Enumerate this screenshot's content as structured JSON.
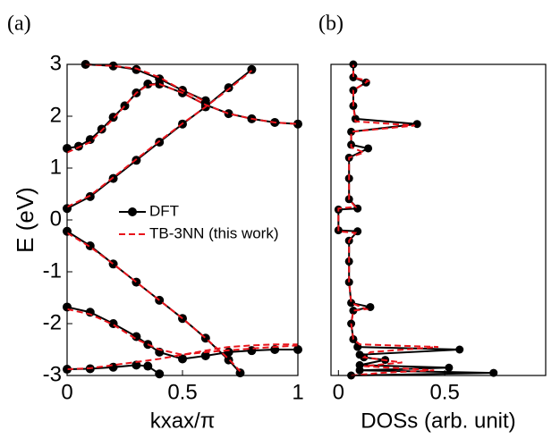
{
  "chart_data": [
    {
      "type": "bands",
      "label": "(a)",
      "xlabel": "kxax/π",
      "ylabel": "E (eV)",
      "xlim": [
        0,
        1
      ],
      "ylim": [
        -3,
        3
      ],
      "xticks": [
        0,
        0.5,
        1
      ],
      "yticks": [
        -3,
        -2,
        -1,
        0,
        1,
        2,
        3
      ],
      "series": [
        {
          "name": "DFT",
          "color": "#000000",
          "marker": "o",
          "dash": false,
          "lines": [
            {
              "x": [
                0,
                0.1,
                0.2,
                0.3,
                0.4,
                0.5,
                0.6,
                0.7,
                0.8
              ],
              "values": [
                0.22,
                0.45,
                0.8,
                1.15,
                1.5,
                1.85,
                2.18,
                2.55,
                2.9
              ]
            },
            {
              "x": [
                0,
                0.05,
                0.1,
                0.15,
                0.2,
                0.25,
                0.3,
                0.35,
                0.4,
                0.5,
                0.6,
                0.7,
                0.8,
                0.9,
                1
              ],
              "values": [
                1.38,
                1.42,
                1.55,
                1.75,
                1.98,
                2.2,
                2.45,
                2.62,
                2.62,
                2.45,
                2.22,
                2.05,
                1.95,
                1.88,
                1.85
              ]
            },
            {
              "x": [
                0.08,
                0.2,
                0.3,
                0.4,
                0.5,
                0.6
              ],
              "values": [
                3,
                2.97,
                2.9,
                2.72,
                2.5,
                2.3
              ]
            },
            {
              "x": [
                0,
                0.1,
                0.2,
                0.3,
                0.4,
                0.5,
                0.6,
                0.7,
                0.75
              ],
              "values": [
                -0.22,
                -0.5,
                -0.85,
                -1.2,
                -1.55,
                -1.9,
                -2.28,
                -2.7,
                -2.95
              ]
            },
            {
              "x": [
                0,
                0.1,
                0.2,
                0.3,
                0.35,
                0.4,
                0.5,
                0.6,
                0.7,
                0.8,
                0.9,
                1
              ],
              "values": [
                -1.68,
                -1.78,
                -2,
                -2.25,
                -2.4,
                -2.55,
                -2.68,
                -2.62,
                -2.55,
                -2.52,
                -2.5,
                -2.5
              ]
            },
            {
              "x": [
                0,
                0.1,
                0.2,
                0.3,
                0.35,
                0.4
              ],
              "values": [
                -2.88,
                -2.87,
                -2.84,
                -2.8,
                -2.82,
                -2.97
              ]
            }
          ]
        },
        {
          "name": "TB-3NN (this work)",
          "color": "#e8141b",
          "marker": "none",
          "dash": true,
          "lines": [
            {
              "x": [
                0,
                0.1,
                0.2,
                0.3,
                0.4,
                0.5,
                0.6,
                0.7,
                0.8
              ],
              "values": [
                0.25,
                0.47,
                0.82,
                1.17,
                1.52,
                1.86,
                2.18,
                2.52,
                2.88
              ]
            },
            {
              "x": [
                0,
                0.1,
                0.2,
                0.3,
                0.35,
                0.4,
                0.5,
                0.6,
                0.7,
                0.8,
                0.9,
                1
              ],
              "values": [
                1.3,
                1.5,
                1.95,
                2.45,
                2.6,
                2.62,
                2.45,
                2.22,
                2.05,
                1.95,
                1.88,
                1.85
              ]
            },
            {
              "x": [
                0.08,
                0.2,
                0.3,
                0.4,
                0.5,
                0.6
              ],
              "values": [
                3,
                2.97,
                2.92,
                2.75,
                2.5,
                2.28
              ]
            },
            {
              "x": [
                0,
                0.1,
                0.2,
                0.3,
                0.4,
                0.5,
                0.6,
                0.7,
                0.75
              ],
              "values": [
                -0.25,
                -0.52,
                -0.85,
                -1.2,
                -1.55,
                -1.9,
                -2.28,
                -2.68,
                -2.92
              ]
            },
            {
              "x": [
                0,
                0.1,
                0.2,
                0.3,
                0.4,
                0.5,
                0.6,
                0.7,
                0.8,
                0.9,
                1
              ],
              "values": [
                -1.72,
                -1.82,
                -2.02,
                -2.3,
                -2.5,
                -2.6,
                -2.52,
                -2.45,
                -2.42,
                -2.4,
                -2.4
              ]
            },
            {
              "x": [
                0,
                0.1,
                0.2,
                0.3,
                0.4,
                0.5,
                0.6,
                0.8,
                1
              ],
              "values": [
                -2.88,
                -2.86,
                -2.8,
                -2.74,
                -2.68,
                -2.6,
                -2.55,
                -2.48,
                -2.42
              ]
            }
          ]
        }
      ]
    },
    {
      "type": "dos",
      "label": "(b)",
      "xlabel": "DOSs (arb. unit)",
      "xlim": [
        -0.035,
        0.975
      ],
      "ylim": [
        -3,
        3
      ],
      "xticks": [
        0,
        0.5
      ],
      "series": [
        {
          "color": "#000000",
          "marker": "o",
          "dash": false,
          "energy": [
            -3,
            -2.95,
            -2.9,
            -2.85,
            -2.8,
            -2.7,
            -2.65,
            -2.6,
            -2.5,
            -2.45,
            -2.3,
            -2,
            -1.75,
            -1.68,
            -1.6,
            -1.2,
            -0.8,
            -0.4,
            -0.22,
            -0.2,
            0.2,
            0.22,
            0.4,
            0.8,
            1.2,
            1.38,
            1.45,
            1.7,
            1.85,
            1.95,
            2.2,
            2.5,
            2.65,
            2.75,
            3
          ],
          "values": [
            0.06,
            0.73,
            0.1,
            0.52,
            0.1,
            0.22,
            0.12,
            0.1,
            0.57,
            0.09,
            0.07,
            0.06,
            0.07,
            0.15,
            0.06,
            0.05,
            0.05,
            0.05,
            0.09,
            0,
            0,
            0.09,
            0.05,
            0.05,
            0.05,
            0.14,
            0.06,
            0.06,
            0.37,
            0.08,
            0.07,
            0.07,
            0.13,
            0.07,
            0.07
          ]
        },
        {
          "color": "#e8141b",
          "marker": "none",
          "dash": true,
          "energy": [
            -3,
            -2.95,
            -2.9,
            -2.82,
            -2.75,
            -2.65,
            -2.55,
            -2.45,
            -2.4,
            -2.3,
            -2,
            -1.75,
            -1.72,
            -1.6,
            -1.2,
            -0.8,
            -0.4,
            -0.25,
            -0.22,
            0.22,
            0.25,
            0.4,
            0.8,
            1.2,
            1.3,
            1.4,
            1.7,
            1.82,
            1.9,
            2.2,
            2.5,
            2.68,
            2.75,
            3
          ],
          "values": [
            0.06,
            0.2,
            0.45,
            0.12,
            0.3,
            0.12,
            0.15,
            0.47,
            0.1,
            0.07,
            0.06,
            0.07,
            0.13,
            0.06,
            0.05,
            0.05,
            0.05,
            0.08,
            0,
            0,
            0.08,
            0.05,
            0.05,
            0.05,
            0.12,
            0.06,
            0.06,
            0.36,
            0.08,
            0.07,
            0.07,
            0.14,
            0.07,
            0.07
          ]
        }
      ]
    }
  ]
}
